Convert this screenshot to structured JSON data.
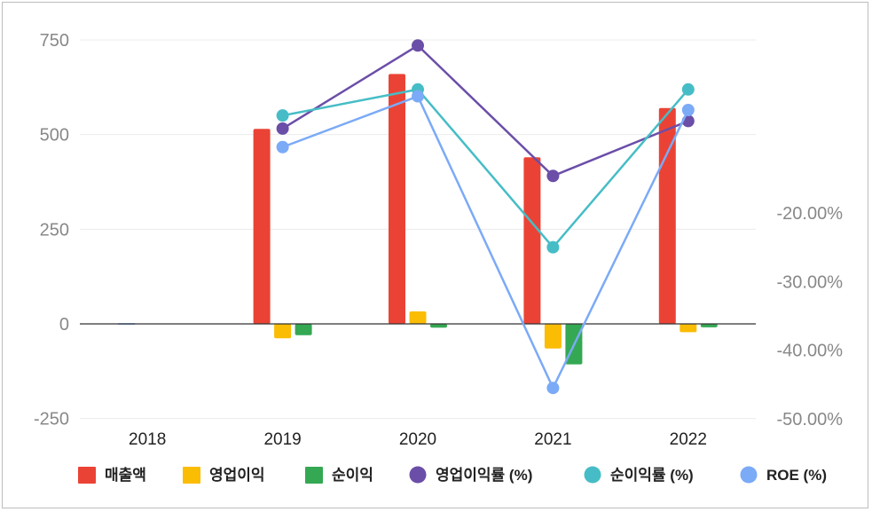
{
  "chart_data": {
    "type": "bar",
    "categories": [
      "2018",
      "2019",
      "2020",
      "2021",
      "2022"
    ],
    "left_axis": {
      "ylim": [
        -250,
        750
      ],
      "ticks": [
        750,
        500,
        250,
        0,
        -250
      ],
      "tick_labels": [
        "750",
        "500",
        "250",
        "0",
        "-250"
      ]
    },
    "right_axis": {
      "ylim": [
        -50,
        4.4
      ],
      "ticks": [
        -20,
        -30,
        -40,
        -50
      ],
      "tick_labels": [
        "-20.00%",
        "-30.00%",
        "-40.00%",
        "-50.00%"
      ]
    },
    "bar_series": [
      {
        "name": "매출액",
        "color": "#ea4335",
        "values": [
          0,
          515,
          660,
          440,
          570
        ]
      },
      {
        "name": "영업이익",
        "color": "#fbbc04",
        "values": [
          0,
          -38,
          33,
          -65,
          -22
        ]
      },
      {
        "name": "순이익",
        "color": "#34a853",
        "values": [
          0,
          -30,
          -10,
          -107,
          -9
        ]
      }
    ],
    "line_series": [
      {
        "name": "영업이익률 (%)",
        "color": "#6b4ea8",
        "values": [
          null,
          -7.7,
          4.4,
          -14.6,
          -6.6
        ]
      },
      {
        "name": "순이익률 (%)",
        "color": "#46bdc6",
        "values": [
          null,
          -5.8,
          -2.0,
          -25.0,
          -2.0
        ]
      },
      {
        "name": "ROE (%)",
        "color": "#7baaf7",
        "values": [
          null,
          -10.4,
          -3.0,
          -45.5,
          -5.0
        ]
      }
    ],
    "grid": true,
    "legend_position": "bottom"
  }
}
